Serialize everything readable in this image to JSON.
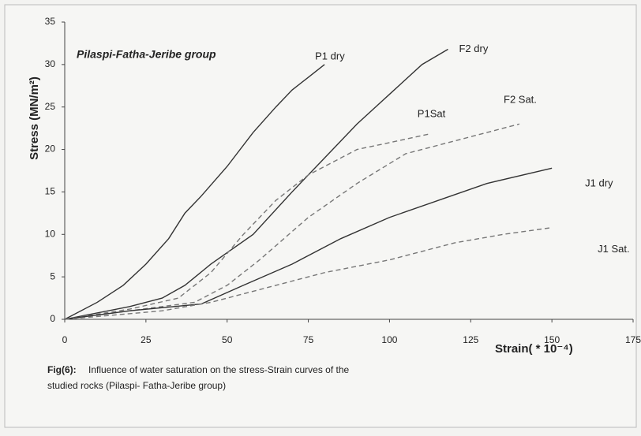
{
  "chart_data": {
    "type": "line",
    "title": "Pilaspi-Fatha-Jeribe group",
    "y_label": "Stress (MN/m²)",
    "x_label": "Strain( * 10⁻⁴)",
    "caption": {
      "label": "Fig(6):",
      "lines": [
        "Influence of water saturation on the stress-Strain curves of the",
        "studied rocks (Pilaspi- Fatha-Jeribe group)"
      ]
    },
    "xlim": [
      0,
      175
    ],
    "xticks": [
      0,
      25,
      50,
      75,
      100,
      125,
      150,
      175
    ],
    "ylim": [
      0,
      35
    ],
    "yticks": [
      0,
      5,
      10,
      15,
      20,
      25,
      30,
      35
    ],
    "grid": false,
    "series": [
      {
        "name": "P1 dry",
        "color": "#333333",
        "dashed": false,
        "x": [
          0,
          10,
          18,
          25,
          32,
          37,
          42,
          50,
          58,
          65,
          70,
          75,
          80
        ],
        "values": [
          0,
          2,
          4,
          6.5,
          9.5,
          12.5,
          14.5,
          18,
          22,
          25,
          27,
          28.5,
          30
        ]
      },
      {
        "name": "F2 dry",
        "color": "#333333",
        "dashed": false,
        "x": [
          0,
          20,
          30,
          37,
          45,
          58,
          70,
          80,
          90,
          100,
          110,
          118
        ],
        "values": [
          0,
          1.5,
          2.5,
          4,
          6.5,
          10,
          15,
          19,
          23,
          26.5,
          30,
          31.8
        ]
      },
      {
        "name": "F2 Sat.",
        "color": "#777777",
        "dashed": true,
        "x": [
          0,
          20,
          40,
          50,
          60,
          75,
          90,
          105,
          120,
          140
        ],
        "values": [
          0,
          1,
          2,
          4,
          7,
          12,
          16,
          19.5,
          21,
          23
        ]
      },
      {
        "name": "P1Sat",
        "color": "#777777",
        "dashed": true,
        "x": [
          0,
          20,
          35,
          45,
          55,
          65,
          75,
          90,
          100,
          112
        ],
        "values": [
          0,
          1.2,
          2.5,
          5.5,
          10,
          14,
          17,
          20,
          20.8,
          21.8
        ]
      },
      {
        "name": "J1 dry",
        "color": "#333333",
        "dashed": false,
        "x": [
          0,
          20,
          42,
          55,
          70,
          85,
          100,
          115,
          130,
          150
        ],
        "values": [
          0,
          1,
          1.8,
          4,
          6.5,
          9.5,
          12,
          14,
          16,
          17.8
        ]
      },
      {
        "name": "J1 Sat.",
        "color": "#777777",
        "dashed": true,
        "x": [
          0,
          30,
          45,
          60,
          80,
          100,
          120,
          135,
          150
        ],
        "values": [
          0,
          1,
          2,
          3.5,
          5.5,
          7,
          9,
          10,
          10.8
        ]
      }
    ]
  }
}
